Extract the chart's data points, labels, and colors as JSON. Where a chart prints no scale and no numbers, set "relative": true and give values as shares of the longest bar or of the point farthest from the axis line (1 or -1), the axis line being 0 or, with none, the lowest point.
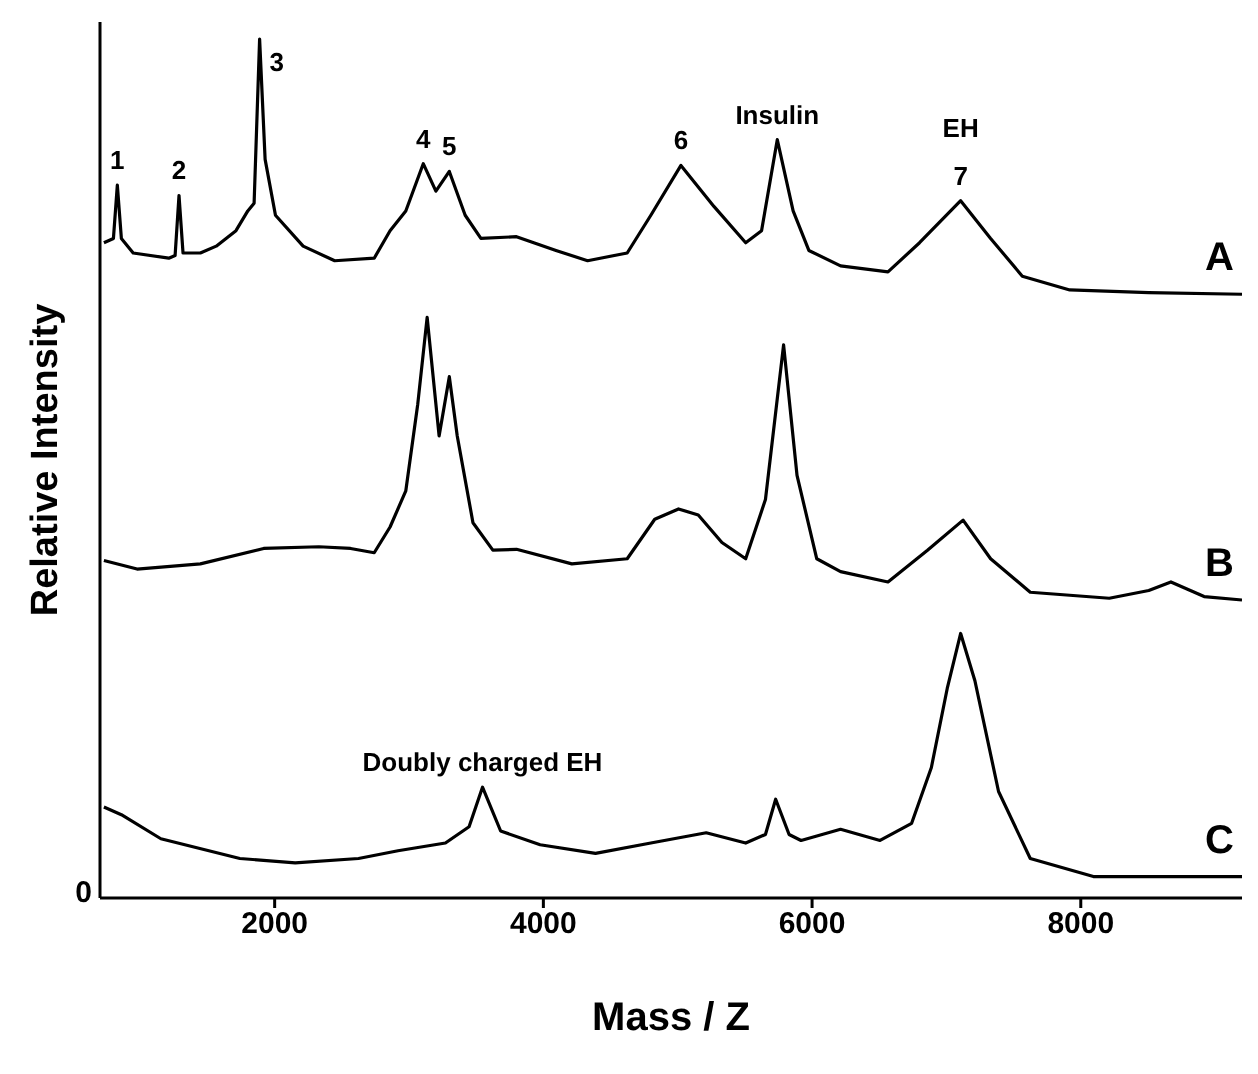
{
  "chart_data": {
    "type": "line",
    "relative": true,
    "xlabel": "Mass / Z",
    "ylabel": "Relative Intensity",
    "xlim": [
      700,
      9200
    ],
    "xticks": [
      2000,
      4000,
      6000,
      8000
    ],
    "grid": false,
    "legend": false,
    "marker": "none",
    "line_style": "solid",
    "series": [
      {
        "name": "A",
        "color": "#000000",
        "x": [
          729,
          800,
          829,
          859,
          947,
          1212,
          1259,
          1288,
          1318,
          1447,
          1565,
          1712,
          1800,
          1847,
          1888,
          1929,
          2006,
          2212,
          2447,
          2741,
          2859,
          2976,
          3106,
          3200,
          3300,
          3418,
          3535,
          3800,
          4094,
          4329,
          4624,
          4800,
          5024,
          5271,
          5506,
          5624,
          5741,
          5859,
          5976,
          6212,
          6565,
          6800,
          7106,
          7329,
          7565,
          7918,
          8506,
          9200
        ],
        "values": [
          0.763,
          0.768,
          0.83,
          0.768,
          0.751,
          0.745,
          0.748,
          0.818,
          0.751,
          0.751,
          0.759,
          0.777,
          0.8,
          0.809,
          1.0,
          0.86,
          0.795,
          0.759,
          0.742,
          0.745,
          0.777,
          0.8,
          0.855,
          0.823,
          0.846,
          0.795,
          0.768,
          0.77,
          0.754,
          0.742,
          0.751,
          0.795,
          0.853,
          0.805,
          0.763,
          0.777,
          0.883,
          0.8,
          0.754,
          0.736,
          0.729,
          0.763,
          0.812,
          0.768,
          0.724,
          0.708,
          0.705,
          0.703
        ]
      },
      {
        "name": "B",
        "color": "#000000",
        "x": [
          729,
          976,
          1447,
          1918,
          2329,
          2565,
          2741,
          2859,
          2976,
          3065,
          3135,
          3224,
          3300,
          3359,
          3476,
          3624,
          3800,
          4212,
          4624,
          4829,
          5006,
          5153,
          5329,
          5506,
          5653,
          5788,
          5888,
          6035,
          6212,
          6565,
          6859,
          7124,
          7329,
          7624,
          8212,
          8506,
          8671,
          8918,
          9200
        ],
        "values": [
          0.393,
          0.383,
          0.389,
          0.407,
          0.409,
          0.407,
          0.402,
          0.432,
          0.474,
          0.575,
          0.676,
          0.538,
          0.607,
          0.538,
          0.437,
          0.405,
          0.406,
          0.389,
          0.395,
          0.441,
          0.453,
          0.446,
          0.414,
          0.395,
          0.464,
          0.644,
          0.492,
          0.395,
          0.38,
          0.368,
          0.405,
          0.44,
          0.395,
          0.356,
          0.349,
          0.358,
          0.368,
          0.351,
          0.347
        ]
      },
      {
        "name": "C",
        "color": "#000000",
        "x": [
          729,
          859,
          1153,
          1741,
          2153,
          2624,
          2918,
          3271,
          3447,
          3547,
          3682,
          3976,
          4388,
          4800,
          5212,
          5506,
          5653,
          5729,
          5829,
          5918,
          6212,
          6506,
          6741,
          6888,
          7006,
          7106,
          7212,
          7388,
          7624,
          8094,
          9200
        ],
        "values": [
          0.106,
          0.097,
          0.069,
          0.046,
          0.041,
          0.046,
          0.055,
          0.064,
          0.083,
          0.129,
          0.078,
          0.062,
          0.052,
          0.064,
          0.076,
          0.064,
          0.074,
          0.115,
          0.074,
          0.067,
          0.08,
          0.067,
          0.087,
          0.152,
          0.244,
          0.308,
          0.253,
          0.124,
          0.046,
          0.025,
          0.025
        ]
      }
    ],
    "annotations": [
      {
        "text": "1",
        "x": 829,
        "y": 0.83
      },
      {
        "text": "2",
        "x": 1288,
        "y": 0.818
      },
      {
        "text": "3",
        "x": 1888,
        "y": 1.0
      },
      {
        "text": "4",
        "x": 3106,
        "y": 0.855
      },
      {
        "text": "5",
        "x": 3300,
        "y": 0.846
      },
      {
        "text": "6",
        "x": 5024,
        "y": 0.853
      },
      {
        "text": "Insulin",
        "x": 5741,
        "y": 0.883
      },
      {
        "text": "7",
        "x": 7106,
        "y": 0.812
      },
      {
        "text": "EH",
        "x": 7106,
        "y": 0.812
      },
      {
        "text": "Doubly charged EH",
        "x": 3547,
        "y": 0.129
      },
      "0"
    ]
  }
}
